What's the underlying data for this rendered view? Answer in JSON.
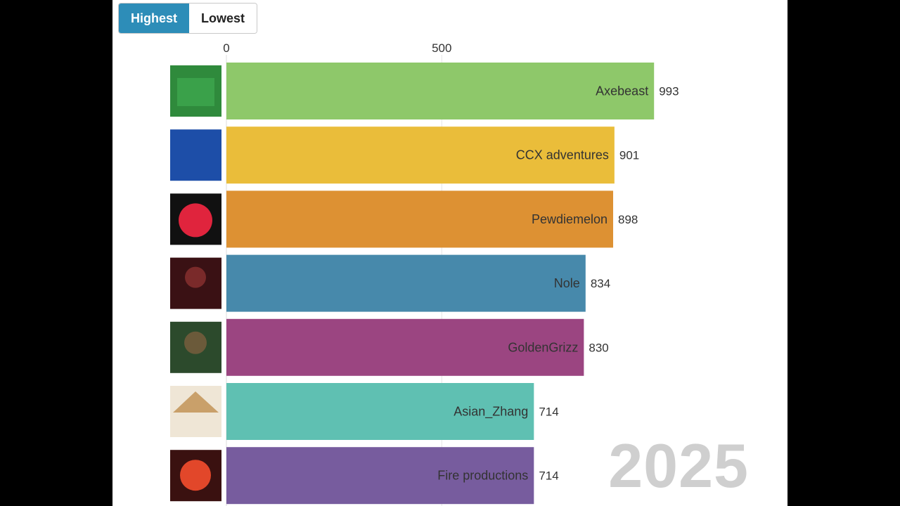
{
  "toggle": {
    "highest_label": "Highest",
    "lowest_label": "Lowest",
    "selected": "Highest"
  },
  "year": "2025",
  "chart_data": {
    "type": "bar",
    "orientation": "horizontal",
    "categories": [
      "Axebeast",
      "CCX adventures",
      "Pewdiemelon",
      "Nole",
      "GoldenGrizz",
      "Asian_Zhang",
      "Fire productions"
    ],
    "values": [
      993,
      901,
      898,
      834,
      830,
      714,
      714
    ],
    "colors": [
      "#8ec86a",
      "#eabd3a",
      "#dd9133",
      "#4789ab",
      "#9b4581",
      "#5fc0b2",
      "#775c9e"
    ],
    "avatars": [
      "soccer-team-avatar",
      "football-player-5-avatar",
      "red-fuzzy-ball-avatar",
      "np-basketball-avatar",
      "golden-grizz-avatar",
      "straw-hat-avatar",
      "fire-football-avatar"
    ],
    "x_ticks": [
      0,
      500
    ],
    "xlim": [
      0,
      1000
    ],
    "grid": true,
    "legend": "none"
  }
}
